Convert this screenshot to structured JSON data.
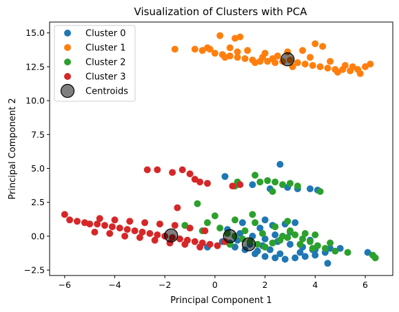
{
  "chart_data": {
    "type": "scatter",
    "title": "Visualization of Clusters with PCA",
    "xlabel": "Principal Component 1",
    "ylabel": "Principal Component 2",
    "xlim": [
      -6.6,
      7.1
    ],
    "ylim": [
      -2.9,
      15.8
    ],
    "xticks": [
      -6,
      -4,
      -2,
      0,
      2,
      4,
      6
    ],
    "yticks": [
      -2.5,
      0.0,
      2.5,
      5.0,
      7.5,
      10.0,
      12.5,
      15.0
    ],
    "xtick_labels": [
      "−6",
      "−4",
      "−2",
      "0",
      "2",
      "4",
      "6"
    ],
    "ytick_labels": [
      "−2.5",
      "0.0",
      "2.5",
      "5.0",
      "7.5",
      "10.0",
      "12.5",
      "15.0"
    ],
    "grid": false,
    "legend_position": "upper-left",
    "series": [
      {
        "name": "Cluster 0",
        "color": "#1f77b4",
        "points": [
          [
            0.3,
            -0.4
          ],
          [
            0.8,
            -0.8
          ],
          [
            1.2,
            -1.0
          ],
          [
            1.6,
            -1.3
          ],
          [
            2.0,
            -1.5
          ],
          [
            2.4,
            -1.6
          ],
          [
            2.8,
            -1.7
          ],
          [
            3.2,
            -1.6
          ],
          [
            3.6,
            -1.5
          ],
          [
            4.0,
            -1.4
          ],
          [
            1.0,
            0.2
          ],
          [
            1.5,
            0.0
          ],
          [
            2.0,
            -0.2
          ],
          [
            2.5,
            -0.4
          ],
          [
            3.0,
            -0.6
          ],
          [
            3.5,
            -0.8
          ],
          [
            4.0,
            -1.0
          ],
          [
            4.4,
            -1.2
          ],
          [
            0.5,
            0.5
          ],
          [
            1.8,
            0.6
          ],
          [
            2.3,
            0.8
          ],
          [
            2.8,
            0.9
          ],
          [
            3.2,
            1.0
          ],
          [
            2.6,
            5.3
          ],
          [
            2.9,
            3.6
          ],
          [
            3.3,
            3.5
          ],
          [
            3.8,
            3.5
          ],
          [
            4.1,
            3.4
          ],
          [
            1.5,
            3.8
          ],
          [
            2.2,
            3.5
          ],
          [
            0.4,
            4.4
          ],
          [
            4.5,
            -2.0
          ],
          [
            5.0,
            -0.9
          ],
          [
            6.1,
            -1.2
          ],
          [
            3.8,
            -0.3
          ],
          [
            2.2,
            -1.0
          ],
          [
            1.4,
            -0.6
          ],
          [
            0.9,
            -0.3
          ],
          [
            -0.3,
            -0.8
          ],
          [
            1.9,
            -0.7
          ],
          [
            3.4,
            -1.2
          ],
          [
            2.6,
            -1.3
          ],
          [
            4.6,
            -0.9
          ],
          [
            2.0,
            1.2
          ],
          [
            1.1,
            1.0
          ],
          [
            3.0,
            0.3
          ],
          [
            2.4,
            0.1
          ],
          [
            3.9,
            -1.0
          ],
          [
            1.7,
            -1.1
          ],
          [
            0.6,
            -0.5
          ]
        ]
      },
      {
        "name": "Cluster 1",
        "color": "#ff7f0e",
        "points": [
          [
            -1.6,
            13.8
          ],
          [
            -0.8,
            13.8
          ],
          [
            -0.5,
            13.7
          ],
          [
            -0.2,
            13.8
          ],
          [
            0.0,
            13.5
          ],
          [
            0.3,
            13.4
          ],
          [
            0.6,
            13.3
          ],
          [
            0.9,
            13.2
          ],
          [
            1.2,
            13.1
          ],
          [
            1.5,
            13.0
          ],
          [
            1.8,
            12.9
          ],
          [
            2.1,
            12.9
          ],
          [
            2.4,
            12.8
          ],
          [
            2.7,
            12.9
          ],
          [
            3.0,
            13.0
          ],
          [
            3.3,
            12.8
          ],
          [
            3.6,
            12.7
          ],
          [
            3.9,
            12.6
          ],
          [
            4.2,
            12.5
          ],
          [
            4.5,
            12.4
          ],
          [
            4.8,
            12.3
          ],
          [
            5.1,
            12.3
          ],
          [
            5.4,
            12.2
          ],
          [
            5.7,
            12.3
          ],
          [
            6.0,
            12.5
          ],
          [
            6.2,
            12.7
          ],
          [
            0.2,
            14.8
          ],
          [
            0.8,
            14.6
          ],
          [
            1.0,
            14.7
          ],
          [
            4.0,
            14.2
          ],
          [
            4.3,
            14.0
          ],
          [
            3.5,
            13.7
          ],
          [
            2.9,
            13.6
          ],
          [
            2.0,
            13.5
          ],
          [
            1.3,
            13.7
          ],
          [
            0.6,
            13.9
          ],
          [
            -0.3,
            13.9
          ],
          [
            0.4,
            13.2
          ],
          [
            1.6,
            12.8
          ],
          [
            2.5,
            13.3
          ],
          [
            3.8,
            13.2
          ],
          [
            4.6,
            12.9
          ],
          [
            5.2,
            12.6
          ],
          [
            5.8,
            12.0
          ],
          [
            3.1,
            12.5
          ],
          [
            1.9,
            13.2
          ],
          [
            0.9,
            13.6
          ],
          [
            4.9,
            12.1
          ],
          [
            5.5,
            12.5
          ],
          [
            2.3,
            13.1
          ]
        ]
      },
      {
        "name": "Cluster 2",
        "color": "#2ca02c",
        "points": [
          [
            -0.7,
            2.4
          ],
          [
            -0.3,
            1.0
          ],
          [
            0.2,
            0.6
          ],
          [
            0.5,
            0.2
          ],
          [
            0.8,
            0.0
          ],
          [
            1.1,
            -0.2
          ],
          [
            1.4,
            -0.4
          ],
          [
            1.7,
            -0.6
          ],
          [
            2.0,
            -0.8
          ],
          [
            2.3,
            -0.5
          ],
          [
            2.6,
            -0.3
          ],
          [
            2.9,
            -0.1
          ],
          [
            3.2,
            0.1
          ],
          [
            3.5,
            -0.2
          ],
          [
            3.8,
            -0.4
          ],
          [
            4.1,
            -0.7
          ],
          [
            4.4,
            -0.9
          ],
          [
            4.8,
            -1.1
          ],
          [
            5.3,
            -1.2
          ],
          [
            6.3,
            -1.4
          ],
          [
            6.4,
            -1.6
          ],
          [
            0.0,
            1.5
          ],
          [
            0.8,
            1.2
          ],
          [
            1.6,
            1.0
          ],
          [
            2.4,
            0.7
          ],
          [
            3.0,
            0.4
          ],
          [
            3.6,
            0.2
          ],
          [
            1.8,
            4.0
          ],
          [
            2.1,
            4.1
          ],
          [
            2.4,
            4.0
          ],
          [
            2.7,
            3.8
          ],
          [
            3.0,
            3.9
          ],
          [
            3.3,
            3.7
          ],
          [
            4.2,
            3.3
          ],
          [
            1.6,
            4.5
          ],
          [
            0.9,
            4.0
          ],
          [
            0.8,
            3.7
          ],
          [
            2.3,
            3.3
          ],
          [
            1.2,
            0.4
          ],
          [
            1.9,
            0.2
          ],
          [
            2.7,
            0.0
          ],
          [
            3.4,
            -0.6
          ],
          [
            4.0,
            0.1
          ],
          [
            4.6,
            -0.5
          ],
          [
            0.6,
            -0.6
          ],
          [
            -0.5,
            0.4
          ],
          [
            -1.2,
            0.8
          ],
          [
            1.5,
            1.6
          ],
          [
            2.9,
            1.1
          ],
          [
            3.9,
            -0.9
          ]
        ]
      },
      {
        "name": "Cluster 3",
        "color": "#d62728",
        "points": [
          [
            -6.0,
            1.6
          ],
          [
            -5.8,
            1.2
          ],
          [
            -5.5,
            1.1
          ],
          [
            -5.2,
            1.0
          ],
          [
            -5.0,
            0.9
          ],
          [
            -4.7,
            0.9
          ],
          [
            -4.4,
            0.8
          ],
          [
            -4.1,
            0.7
          ],
          [
            -3.8,
            0.6
          ],
          [
            -3.5,
            0.5
          ],
          [
            -3.2,
            0.4
          ],
          [
            -2.9,
            0.3
          ],
          [
            -2.6,
            0.2
          ],
          [
            -2.3,
            0.1
          ],
          [
            -2.0,
            0.0
          ],
          [
            -1.7,
            -0.1
          ],
          [
            -1.4,
            -0.2
          ],
          [
            -1.1,
            -0.3
          ],
          [
            -0.8,
            -0.4
          ],
          [
            -0.5,
            -0.5
          ],
          [
            -0.2,
            -0.6
          ],
          [
            0.1,
            -0.7
          ],
          [
            0.4,
            -0.4
          ],
          [
            -4.6,
            1.3
          ],
          [
            -4.0,
            1.2
          ],
          [
            -3.4,
            1.1
          ],
          [
            -2.8,
            1.0
          ],
          [
            -2.2,
            0.9
          ],
          [
            -1.6,
            0.8
          ],
          [
            -1.0,
            0.6
          ],
          [
            -0.4,
            0.4
          ],
          [
            -4.8,
            0.3
          ],
          [
            -4.2,
            0.2
          ],
          [
            -3.6,
            0.0
          ],
          [
            -3.0,
            -0.1
          ],
          [
            -2.4,
            -0.3
          ],
          [
            -1.8,
            -0.5
          ],
          [
            -1.2,
            -0.6
          ],
          [
            -0.6,
            -0.8
          ],
          [
            -2.7,
            4.9
          ],
          [
            -2.3,
            4.9
          ],
          [
            -1.7,
            4.7
          ],
          [
            -1.3,
            4.9
          ],
          [
            -1.0,
            4.6
          ],
          [
            -0.8,
            4.2
          ],
          [
            -0.6,
            4.0
          ],
          [
            -0.3,
            3.9
          ],
          [
            0.7,
            3.7
          ],
          [
            1.0,
            3.8
          ],
          [
            -1.5,
            2.1
          ]
        ]
      }
    ],
    "centroids": {
      "name": "Centroids",
      "color": "#808080",
      "points": [
        [
          -1.75,
          0.05
        ],
        [
          0.6,
          0.0
        ],
        [
          1.35,
          -0.6
        ],
        [
          2.9,
          13.05
        ]
      ]
    }
  }
}
